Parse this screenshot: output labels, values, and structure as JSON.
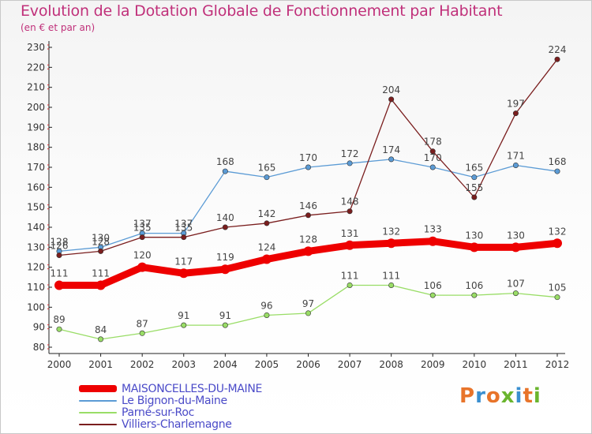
{
  "header": {
    "title": "Evolution de la Dotation Globale de Fonctionnement par Habitant",
    "subtitle": "(en € et par an)"
  },
  "logo": {
    "text": "Proxiti",
    "colors": [
      "#e8742a",
      "#3a8fd0",
      "#e8742a",
      "#6ab52e",
      "#3a8fd0",
      "#e8742a",
      "#6ab52e"
    ]
  },
  "chart_data": {
    "type": "line",
    "title": "Evolution de la Dotation Globale de Fonctionnement par Habitant",
    "subtitle": "(en € et par an)",
    "xlabel": "",
    "ylabel": "",
    "ylim": [
      80,
      230
    ],
    "yticks": [
      80,
      90,
      100,
      110,
      120,
      130,
      140,
      150,
      160,
      170,
      180,
      190,
      200,
      210,
      220,
      230
    ],
    "grid": false,
    "legend_position": "bottom-left",
    "categories": [
      "2000",
      "2001",
      "2002",
      "2003",
      "2004",
      "2005",
      "2006",
      "2007",
      "2008",
      "2009",
      "2010",
      "2011",
      "2012"
    ],
    "series": [
      {
        "name": "MAISONCELLES-DU-MAINE",
        "color": "#ee0000",
        "emphasis": true,
        "values": [
          111,
          111,
          120,
          117,
          119,
          124,
          128,
          131,
          132,
          133,
          130,
          130,
          132
        ]
      },
      {
        "name": "Le Bignon-du-Maine",
        "color": "#5b9bd5",
        "emphasis": false,
        "values": [
          128,
          130,
          137,
          137,
          168,
          165,
          170,
          172,
          174,
          170,
          165,
          171,
          168
        ]
      },
      {
        "name": "Parné-sur-Roc",
        "color": "#99dd66",
        "emphasis": false,
        "values": [
          89,
          84,
          87,
          91,
          91,
          96,
          97,
          111,
          111,
          106,
          106,
          107,
          105
        ]
      },
      {
        "name": "Villiers-Charlemagne",
        "color": "#7a1e1e",
        "emphasis": false,
        "values": [
          126,
          128,
          135,
          135,
          140,
          142,
          146,
          148,
          204,
          178,
          155,
          197,
          224
        ]
      }
    ]
  }
}
